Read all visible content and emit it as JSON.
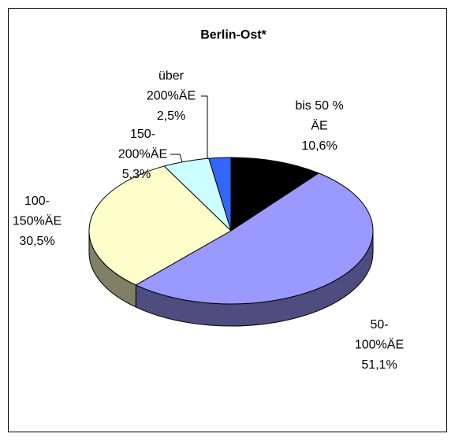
{
  "chart_data": {
    "type": "pie",
    "title": "Berlin-Ost*",
    "categories": [
      [
        "bis 50 %",
        "ÄE"
      ],
      [
        "50-",
        "100%ÄE"
      ],
      [
        "100-",
        "150%ÄE"
      ],
      [
        "150-",
        "200%ÄE"
      ],
      [
        "über",
        "200%ÄE"
      ]
    ],
    "values": [
      10.6,
      51.1,
      30.5,
      5.3,
      2.5
    ],
    "value_labels": [
      "10,6%",
      "51,1%",
      "30,5%",
      "5,3%",
      "2,5%"
    ],
    "colors": [
      "#000000",
      "#9999ff",
      "#ffffcc",
      "#ccffff",
      "#3366ff"
    ]
  }
}
